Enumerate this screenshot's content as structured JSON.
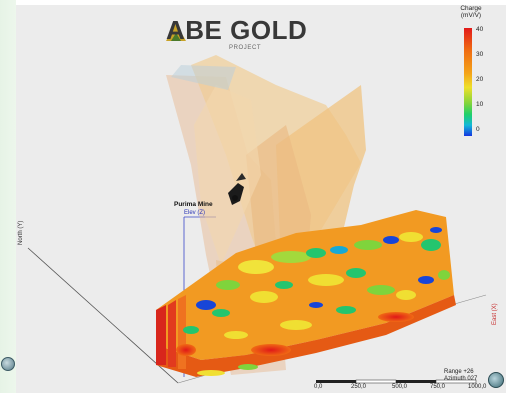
{
  "logo": {
    "text": "ABE GOLD",
    "subtitle": "PROJECT",
    "mark_color": "#c8a227",
    "text_color": "#383838"
  },
  "colorbar": {
    "title_line1": "Charge",
    "title_line2": "(mV/V)",
    "ticks": [
      "40",
      "30",
      "20",
      "10",
      "0"
    ],
    "colors_top_to_bottom": [
      "#e21a1a",
      "#ef6a12",
      "#f4a418",
      "#eee02a",
      "#7fd43c",
      "#1fd06a",
      "#12b8d8",
      "#1535e0"
    ]
  },
  "annotations": {
    "mine": "Purima Mine",
    "elev_axis": "Elev (Z)",
    "north_axis": "North (Y)",
    "east_axis": "East (X)"
  },
  "view_info": {
    "range": "Range +26",
    "azimuth": "Azimuth 027"
  },
  "scale_bar": {
    "ticks": [
      "0,0",
      "250,0",
      "500,0",
      "750,0",
      "1000,0"
    ]
  },
  "icons": {
    "compass": "compass-icon",
    "left_widget": "view-orientation-icon",
    "mine_marker": "mine-marker-icon"
  }
}
